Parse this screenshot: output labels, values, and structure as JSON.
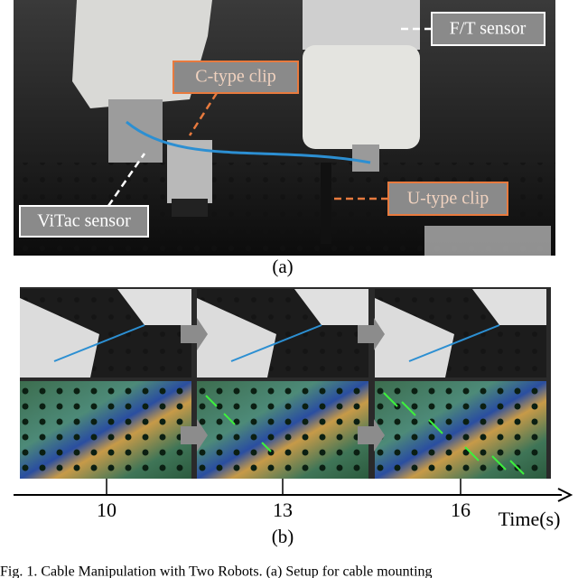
{
  "figure_a": {
    "labels": {
      "ft_sensor": "F/T sensor",
      "c_clip": "C-type clip",
      "vitac_sensor": "ViTac sensor",
      "u_clip": "U-type clip"
    },
    "panel_label": "(a)"
  },
  "figure_b": {
    "timeline": {
      "ticks": [
        10,
        13,
        16
      ],
      "axis_label": "Time(s)"
    },
    "panel_label": "(b)"
  },
  "caption": "Fig. 1.   Cable Manipulation with Two Robots. (a) Setup for cable mounting"
}
